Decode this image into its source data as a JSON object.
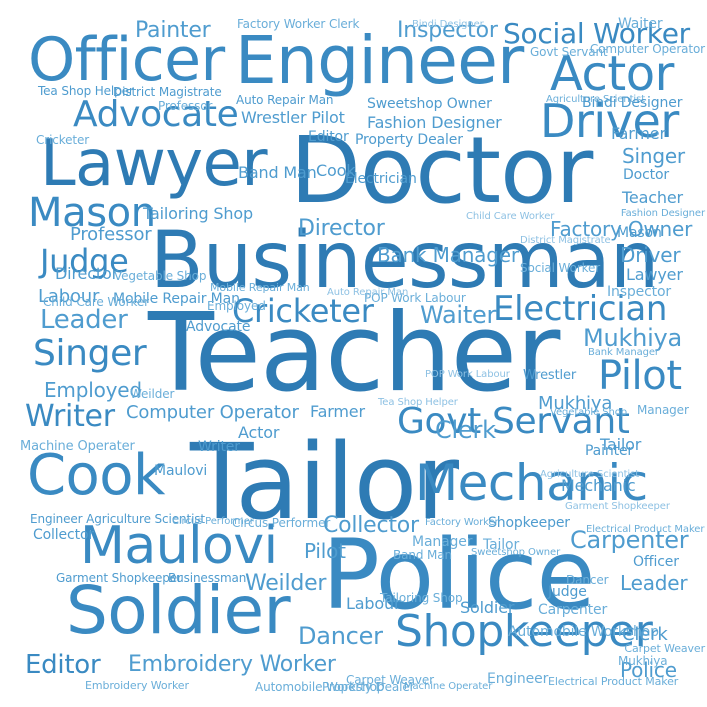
{
  "palette": [
    "#2e7bb4",
    "#3a8ac2",
    "#4f9ccf",
    "#6aaed9",
    "#8ec1e3",
    "#b9d9ee",
    "#d6e9f5"
  ],
  "words": [
    "Teacher",
    "Doctor",
    "Tailor",
    "Police",
    "Businessman",
    "Engineer",
    "Lawyer",
    "Soldier",
    "Officer",
    "Maulovi",
    "Mechanic",
    "Cook",
    "Driver",
    "Actor",
    "Advocate",
    "Shopkeeper",
    "Govt Servant",
    "Mason",
    "Electrician",
    "Clerk",
    "Pilot",
    "Cricketer",
    "Judge",
    "Singer",
    "Social Worker",
    "Painter",
    "Inspector",
    "Writer",
    "Editor",
    "Embroidery Worker",
    "Dancer",
    "Leader",
    "Waiter",
    "Mukhiya",
    "Bank Manager",
    "Factory Owner",
    "Director",
    "Labour",
    "Carpenter",
    "Tailoring Shop",
    "Collector",
    "Farmer",
    "Weilder",
    "Employed",
    "Computer Operator",
    "Professor",
    "Mobile Repair Man",
    "Machine Operater",
    "Automobile Workshop",
    "Manager",
    "Band Man",
    "Wrestler Pilot",
    "Fashion Designer",
    "Property Dealer",
    "Auto Repair Man",
    "Sweetshop Owner",
    "District Magistrate",
    "Tea Shop Helper",
    "Circus Performer",
    "Mukhiya",
    "Factory Worker Clerk",
    "Child Care Worker",
    "Vegetable Shop",
    "POP Work Labour",
    "Engineer Agriculture Scientist",
    "Garment Shopkeeper",
    "Carpet Weaver",
    "Electrical Product Maker",
    "Agriculture Scientist",
    "Bindi Designer",
    "Tailor",
    "Teacher",
    "Farmer",
    "Pilot",
    "Doctor",
    "Mechanic",
    "Leader",
    "Judge",
    "Lawyer",
    "Mason",
    "Waiter",
    "Inspector",
    "Police",
    "Driver",
    "Officer",
    "Singer",
    "Clerk",
    "Actor",
    "Editor",
    "Cook",
    "Dancer",
    "Labour",
    "Director",
    "Writer",
    "Weilder",
    "Cricketer",
    "Collector",
    "Manager",
    "Painter",
    "Electrician",
    "Soldier",
    "Tailor",
    "Carpenter",
    "Professor",
    "Employed",
    "Shopkeeper",
    "Maulovi",
    "Advocate",
    "Band Man",
    "Mukhiya",
    "Wrestler",
    "Automobile Workshop",
    "Embroidery Worker",
    "Computer Operator",
    "Fashion Designer",
    "Social Worker",
    "Vegetable Shop",
    "Tailoring Shop",
    "Businessman",
    "Property Dealer",
    "Sweetshop Owner",
    "Factory Worker",
    "Circus Performer",
    "Bank Manager",
    "Machine Operater",
    "Engineer",
    "Carpet Weaver",
    "Electrical Product Maker",
    "Mobile Repair Man",
    "POP Work Labour",
    "District Magistrate",
    "Child Care Worker",
    "Auto Repair Man",
    "Garment Shopkeeper",
    "Agriculture Scientist",
    "Tea Shop Helper",
    "Bindi Designer",
    "Govt Servant"
  ]
}
